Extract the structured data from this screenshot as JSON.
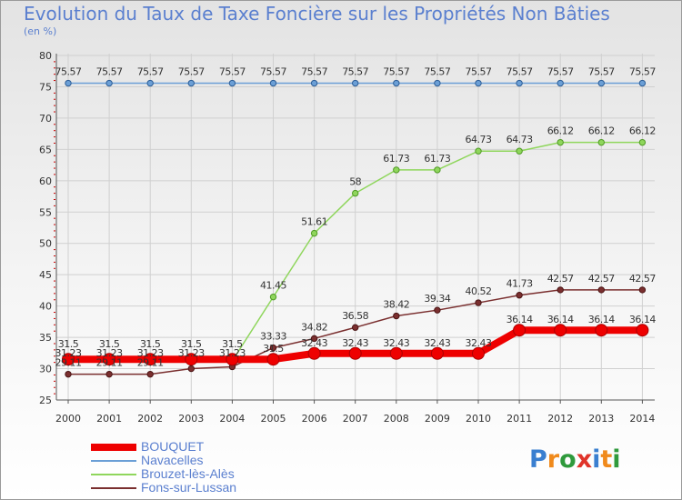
{
  "title": "Evolution du Taux de Taxe Foncière sur les Propriétés Non Bâties",
  "subtitle": "(en %)",
  "logo_text": "Proxiti",
  "colors": {
    "axis": "#555555",
    "grid": "#d0d0d0",
    "text": "#333333",
    "title": "#5a7fcf",
    "tick_minor": "#cc0000"
  },
  "chart_data": {
    "type": "line",
    "title": "Evolution du Taux de Taxe Foncière sur les Propriétés Non Bâties",
    "ylabel": "(en %)",
    "xlabel": "",
    "x": [
      "2000",
      "2001",
      "2002",
      "2003",
      "2004",
      "2005",
      "2006",
      "2007",
      "2008",
      "2009",
      "2010",
      "2011",
      "2012",
      "2013",
      "2014"
    ],
    "yticks": [
      25,
      30,
      35,
      40,
      45,
      50,
      55,
      60,
      65,
      70,
      75,
      80
    ],
    "ylim": [
      25,
      80
    ],
    "grid": true,
    "legend_position": "bottom-left",
    "series": [
      {
        "name": "BOUQUET",
        "color": "#ee0000",
        "values": [
          31.5,
          31.5,
          31.5,
          31.5,
          31.5,
          31.5,
          32.43,
          32.43,
          32.43,
          32.43,
          32.43,
          36.14,
          36.14,
          36.14,
          36.14
        ],
        "labels": [
          "31.5",
          "31.5",
          "31.5",
          "31.5",
          "31.5",
          "31.5",
          "32.43",
          "32.43",
          "32.43",
          "32.43",
          "32.43",
          "36.14",
          "36.14",
          "36.14",
          "36.14"
        ]
      },
      {
        "name": "Navacelles",
        "color": "#6b9fd6",
        "values": [
          75.57,
          75.57,
          75.57,
          75.57,
          75.57,
          75.57,
          75.57,
          75.57,
          75.57,
          75.57,
          75.57,
          75.57,
          75.57,
          75.57,
          75.57
        ],
        "labels": [
          "75.57",
          "75.57",
          "75.57",
          "75.57",
          "75.57",
          "75.57",
          "75.57",
          "75.57",
          "75.57",
          "75.57",
          "75.57",
          "75.57",
          "75.57",
          "75.57",
          "75.57"
        ]
      },
      {
        "name": "Brouzet-lès-Alès",
        "color": "#8fd65c",
        "values": [
          31.23,
          31.23,
          31.23,
          31.23,
          31.23,
          41.45,
          51.61,
          58,
          61.73,
          61.73,
          64.73,
          64.73,
          66.12,
          66.12,
          66.12
        ],
        "labels": [
          "31.23",
          "31.23",
          "31.23",
          "31.23",
          "31.23",
          "41.45",
          "51.61",
          "58",
          "61.73",
          "61.73",
          "64.73",
          "64.73",
          "66.12",
          "66.12",
          "66.12"
        ]
      },
      {
        "name": "Fons-sur-Lussan",
        "color": "#7a2f2f",
        "values": [
          29.11,
          29.11,
          29.11,
          30,
          30.3,
          33.33,
          34.82,
          36.58,
          38.42,
          39.34,
          40.52,
          41.73,
          42.57,
          42.57,
          42.57
        ],
        "labels": [
          "29.11",
          "29.11",
          "29.11",
          "",
          "",
          "33.33",
          "34.82",
          "36.58",
          "38.42",
          "39.34",
          "40.52",
          "41.73",
          "42.57",
          "42.57",
          "42.57"
        ]
      }
    ]
  }
}
